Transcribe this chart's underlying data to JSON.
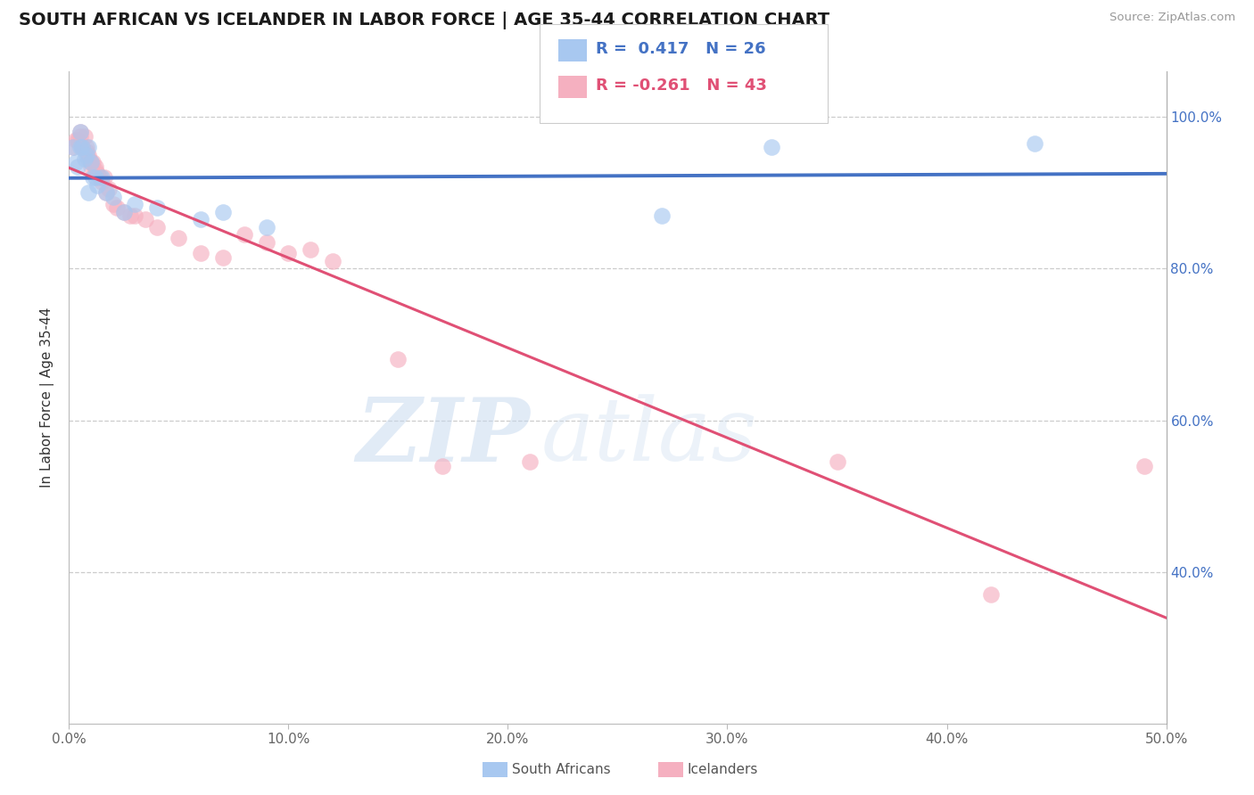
{
  "title": "SOUTH AFRICAN VS ICELANDER IN LABOR FORCE | AGE 35-44 CORRELATION CHART",
  "source_text": "Source: ZipAtlas.com",
  "ylabel": "In Labor Force | Age 35-44",
  "xlim": [
    0.0,
    0.5
  ],
  "ylim": [
    0.2,
    1.06
  ],
  "xticks": [
    0.0,
    0.1,
    0.2,
    0.3,
    0.4,
    0.5
  ],
  "xticklabels": [
    "0.0%",
    "10.0%",
    "20.0%",
    "30.0%",
    "40.0%",
    "50.0%"
  ],
  "yticks": [
    0.4,
    0.6,
    0.8,
    1.0
  ],
  "yticklabels": [
    "40.0%",
    "60.0%",
    "80.0%",
    "100.0%"
  ],
  "blue_color": "#A8C8F0",
  "pink_color": "#F5B0C0",
  "blue_line_color": "#4472C4",
  "pink_line_color": "#E05075",
  "legend_r_blue": "R =  0.417",
  "legend_n_blue": "N = 26",
  "legend_r_pink": "R = -0.261",
  "legend_n_pink": "N = 43",
  "legend_label_blue": "South Africans",
  "legend_label_pink": "Icelanders",
  "watermark_zip": "ZIP",
  "watermark_atlas": "atlas",
  "blue_x": [
    0.002,
    0.003,
    0.004,
    0.005,
    0.005,
    0.006,
    0.007,
    0.008,
    0.009,
    0.009,
    0.01,
    0.011,
    0.012,
    0.013,
    0.015,
    0.017,
    0.02,
    0.025,
    0.03,
    0.04,
    0.06,
    0.07,
    0.09,
    0.27,
    0.32,
    0.44
  ],
  "blue_y": [
    0.96,
    0.94,
    0.935,
    0.98,
    0.96,
    0.96,
    0.945,
    0.95,
    0.96,
    0.9,
    0.94,
    0.92,
    0.92,
    0.91,
    0.92,
    0.9,
    0.895,
    0.875,
    0.885,
    0.88,
    0.865,
    0.875,
    0.855,
    0.87,
    0.96,
    0.965
  ],
  "pink_x": [
    0.002,
    0.003,
    0.004,
    0.005,
    0.005,
    0.006,
    0.007,
    0.008,
    0.008,
    0.009,
    0.009,
    0.01,
    0.01,
    0.011,
    0.012,
    0.012,
    0.013,
    0.014,
    0.015,
    0.016,
    0.017,
    0.018,
    0.02,
    0.022,
    0.025,
    0.028,
    0.03,
    0.035,
    0.04,
    0.05,
    0.06,
    0.07,
    0.08,
    0.09,
    0.1,
    0.11,
    0.12,
    0.15,
    0.17,
    0.21,
    0.35,
    0.42,
    0.49
  ],
  "pink_y": [
    0.96,
    0.97,
    0.97,
    0.98,
    0.975,
    0.96,
    0.975,
    0.96,
    0.955,
    0.95,
    0.945,
    0.94,
    0.935,
    0.94,
    0.93,
    0.935,
    0.925,
    0.92,
    0.915,
    0.92,
    0.9,
    0.905,
    0.885,
    0.88,
    0.875,
    0.87,
    0.87,
    0.865,
    0.855,
    0.84,
    0.82,
    0.815,
    0.845,
    0.835,
    0.82,
    0.825,
    0.81,
    0.68,
    0.54,
    0.545,
    0.545,
    0.37,
    0.54
  ],
  "grid_color": "#CCCCCC",
  "title_fontsize": 14,
  "axis_tick_fontsize": 11
}
